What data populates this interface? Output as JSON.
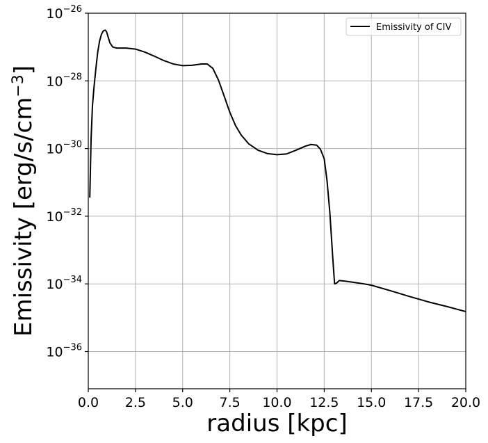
{
  "chart_data": {
    "type": "line",
    "title": "",
    "xlabel": "radius [kpc]",
    "ylabel": "Emissivity [erg/s/cm",
    "ylabel_exponent": "−3",
    "ylabel_suffix": "]",
    "y_scale": "log",
    "xlim": [
      0.0,
      20.0
    ],
    "ylim_log10": [
      -37.1,
      -26
    ],
    "grid": true,
    "legend_position": "top-right",
    "x_ticks": [
      {
        "value": 0.0,
        "label": "0.0"
      },
      {
        "value": 2.5,
        "label": "2.5"
      },
      {
        "value": 5.0,
        "label": "5.0"
      },
      {
        "value": 7.5,
        "label": "7.5"
      },
      {
        "value": 10.0,
        "label": "10.0"
      },
      {
        "value": 12.5,
        "label": "12.5"
      },
      {
        "value": 15.0,
        "label": "15.0"
      },
      {
        "value": 17.5,
        "label": "17.5"
      },
      {
        "value": 20.0,
        "label": "20.0"
      }
    ],
    "y_ticks": [
      {
        "exponent": -26,
        "base": "10",
        "sup": "−26"
      },
      {
        "exponent": -28,
        "base": "10",
        "sup": "−28"
      },
      {
        "exponent": -30,
        "base": "10",
        "sup": "−30"
      },
      {
        "exponent": -32,
        "base": "10",
        "sup": "−32"
      },
      {
        "exponent": -34,
        "base": "10",
        "sup": "−34"
      },
      {
        "exponent": -36,
        "base": "10",
        "sup": "−36"
      }
    ],
    "series": [
      {
        "name": "Emissivity of CIV",
        "color": "#000000",
        "x": [
          0.08,
          0.15,
          0.22,
          0.3,
          0.4,
          0.5,
          0.6,
          0.7,
          0.8,
          0.9,
          0.97,
          1.05,
          1.15,
          1.3,
          1.5,
          1.75,
          2.0,
          2.5,
          3.0,
          3.5,
          4.0,
          4.5,
          5.0,
          5.5,
          6.0,
          6.3,
          6.6,
          6.9,
          7.2,
          7.5,
          7.8,
          8.1,
          8.5,
          9.0,
          9.5,
          10.0,
          10.5,
          11.0,
          11.5,
          11.8,
          12.1,
          12.3,
          12.5,
          12.65,
          12.8,
          12.95,
          13.05,
          13.15,
          13.3,
          13.6,
          14.0,
          14.5,
          15.0,
          16.0,
          17.0,
          18.0,
          19.0,
          20.0
        ],
        "y_log10": [
          -31.45,
          -29.7,
          -28.75,
          -28.2,
          -27.65,
          -27.15,
          -26.82,
          -26.62,
          -26.52,
          -26.5,
          -26.55,
          -26.7,
          -26.88,
          -27.0,
          -27.03,
          -27.03,
          -27.03,
          -27.06,
          -27.15,
          -27.27,
          -27.4,
          -27.5,
          -27.55,
          -27.54,
          -27.5,
          -27.5,
          -27.63,
          -27.98,
          -28.45,
          -28.93,
          -29.32,
          -29.6,
          -29.86,
          -30.05,
          -30.15,
          -30.18,
          -30.16,
          -30.05,
          -29.93,
          -29.88,
          -29.9,
          -30.02,
          -30.3,
          -30.95,
          -31.9,
          -33.2,
          -34.0,
          -33.98,
          -33.9,
          -33.92,
          -33.95,
          -33.99,
          -34.04,
          -34.2,
          -34.37,
          -34.53,
          -34.67,
          -34.82
        ]
      }
    ]
  }
}
